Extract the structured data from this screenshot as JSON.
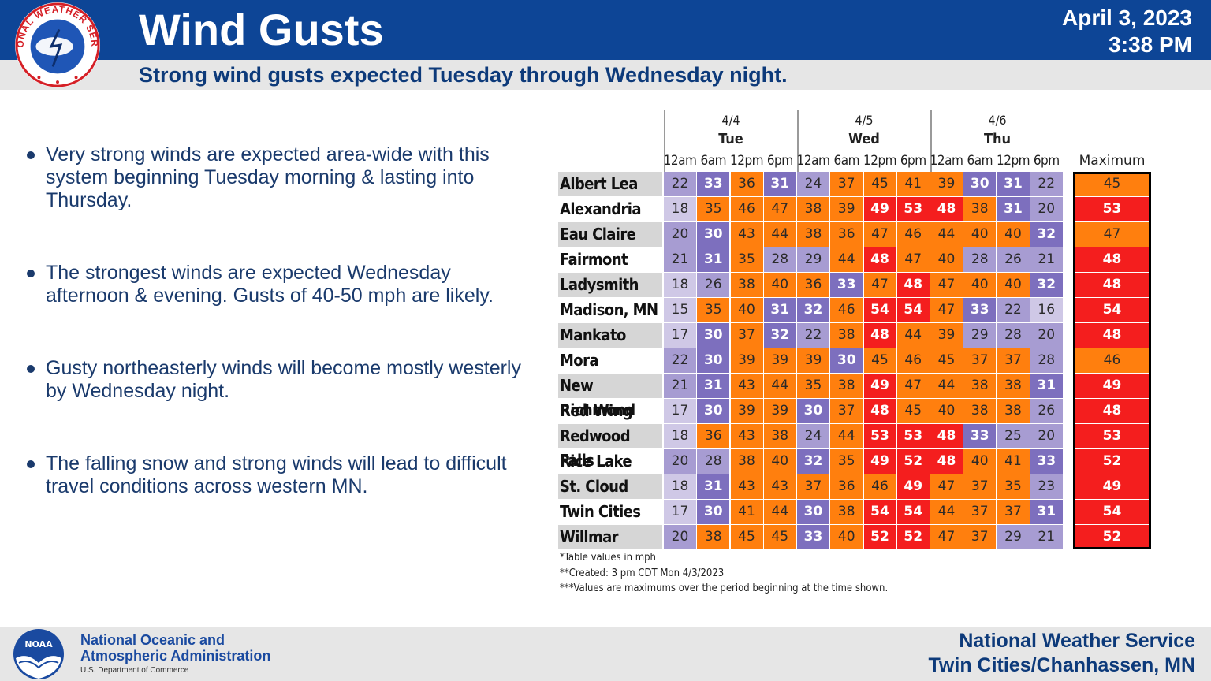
{
  "header": {
    "title": "Wind Gusts",
    "subtitle": "Strong wind gusts expected Tuesday through Wednesday night.",
    "date": "April 3, 2023",
    "time": "3:38 PM",
    "logo_text": "NATIONAL WEATHER SERVICE"
  },
  "bullets": [
    "Very strong winds are expected area-wide with this system beginning Tuesday morning & lasting into Thursday.",
    "The strongest winds are expected Wednesday afternoon & evening. Gusts of 40-50 mph are likely.",
    "Gusty northeasterly winds will become mostly westerly by Wednesday night.",
    "The falling snow and strong winds will lead to difficult travel conditions across western MN."
  ],
  "table": {
    "days": [
      {
        "date": "4/4",
        "name": "Tue"
      },
      {
        "date": "4/5",
        "name": "Wed"
      },
      {
        "date": "4/6",
        "name": "Thu"
      }
    ],
    "times": [
      "12am",
      "6am",
      "12pm",
      "6pm",
      "12am",
      "6am",
      "12pm",
      "6pm",
      "12am",
      "6am",
      "12pm",
      "6pm"
    ],
    "max_header": "Maximum",
    "rows": [
      {
        "city": "Albert Lea",
        "values": [
          22,
          33,
          36,
          31,
          24,
          37,
          45,
          41,
          39,
          30,
          31,
          22
        ],
        "max": 45
      },
      {
        "city": "Alexandria",
        "values": [
          18,
          35,
          46,
          47,
          38,
          39,
          49,
          53,
          48,
          38,
          31,
          20
        ],
        "max": 53
      },
      {
        "city": "Eau Claire",
        "values": [
          20,
          30,
          43,
          44,
          38,
          36,
          47,
          46,
          44,
          40,
          40,
          32
        ],
        "max": 47
      },
      {
        "city": "Fairmont",
        "values": [
          21,
          31,
          35,
          28,
          29,
          44,
          48,
          47,
          40,
          28,
          26,
          21
        ],
        "max": 48
      },
      {
        "city": "Ladysmith",
        "values": [
          18,
          26,
          38,
          40,
          36,
          33,
          47,
          48,
          47,
          40,
          40,
          32
        ],
        "max": 48
      },
      {
        "city": "Madison, MN",
        "values": [
          15,
          35,
          40,
          31,
          32,
          46,
          54,
          54,
          47,
          33,
          22,
          16
        ],
        "max": 54
      },
      {
        "city": "Mankato",
        "values": [
          17,
          30,
          37,
          32,
          22,
          38,
          48,
          44,
          39,
          29,
          28,
          20
        ],
        "max": 48
      },
      {
        "city": "Mora",
        "values": [
          22,
          30,
          39,
          39,
          39,
          30,
          45,
          46,
          45,
          37,
          37,
          28
        ],
        "max": 46
      },
      {
        "city": "New Richmond",
        "values": [
          21,
          31,
          43,
          44,
          35,
          38,
          49,
          47,
          44,
          38,
          38,
          31
        ],
        "max": 49
      },
      {
        "city": "Red Wing",
        "values": [
          17,
          30,
          39,
          39,
          30,
          37,
          48,
          45,
          40,
          38,
          38,
          26
        ],
        "max": 48
      },
      {
        "city": "Redwood Falls",
        "values": [
          18,
          36,
          43,
          38,
          24,
          44,
          53,
          53,
          48,
          33,
          25,
          20
        ],
        "max": 53
      },
      {
        "city": "Rice Lake",
        "values": [
          20,
          28,
          38,
          40,
          32,
          35,
          49,
          52,
          48,
          40,
          41,
          33
        ],
        "max": 52
      },
      {
        "city": "St. Cloud",
        "values": [
          18,
          31,
          43,
          43,
          37,
          36,
          46,
          49,
          47,
          37,
          35,
          23
        ],
        "max": 49
      },
      {
        "city": "Twin Cities",
        "values": [
          17,
          30,
          41,
          44,
          30,
          38,
          54,
          54,
          44,
          37,
          37,
          31
        ],
        "max": 54
      },
      {
        "city": "Willmar",
        "values": [
          20,
          38,
          45,
          45,
          33,
          40,
          52,
          52,
          47,
          37,
          29,
          21
        ],
        "max": 52
      }
    ],
    "notes": [
      "*Table values in mph",
      "**Created: 3 pm CDT Mon 4/3/2023",
      "***Values are maximums over the period beginning at the time shown."
    ]
  },
  "colors": {
    "header_blue": "#0d4596",
    "lt20": "#cfc8e6",
    "lt30": "#a79cd2",
    "lt35": "#7d6fbe",
    "lt48": "#ff7f0e",
    "ge48": "#f41e1e"
  },
  "footer": {
    "noaa_line1": "National Oceanic and",
    "noaa_line2": "Atmospheric Administration",
    "noaa_sub": "U.S. Department of Commerce",
    "noaa_logo_text": "NOAA",
    "nws_line1": "National Weather Service",
    "nws_line2": "Twin Cities/Chanhassen, MN"
  }
}
